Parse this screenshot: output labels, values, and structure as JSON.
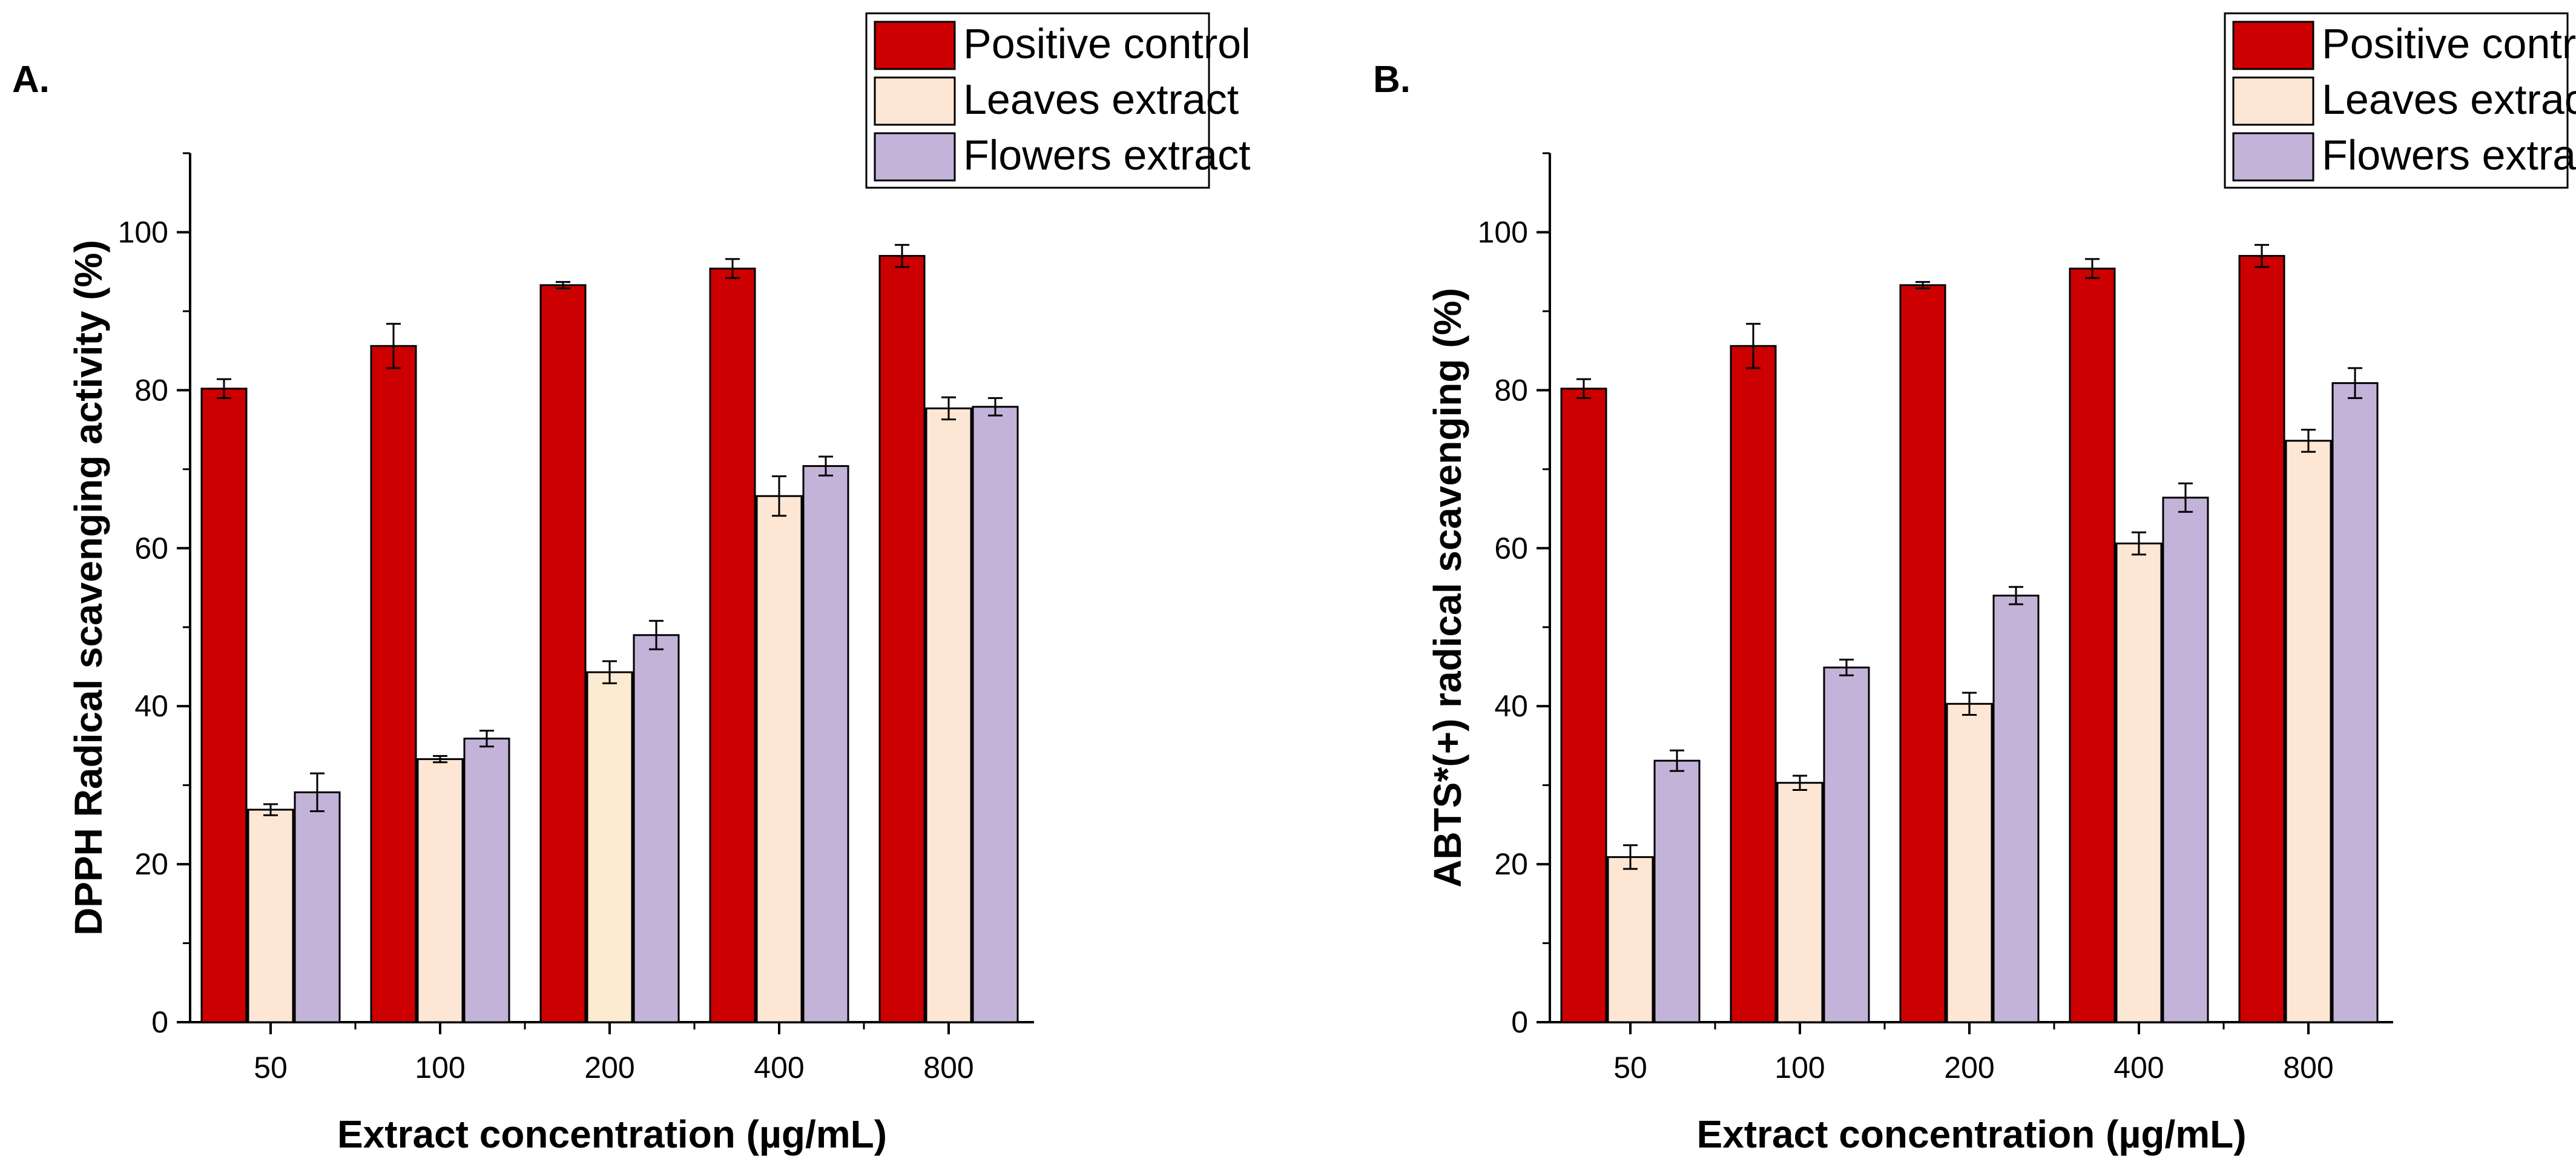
{
  "colors": {
    "positive_control": "#cc0000",
    "leaves_extract": "#fde6d4",
    "leaves_extract_alt": "#fcebd0",
    "flowers_extract": "#c3b3d9",
    "axis": "#000000"
  },
  "chart_data": [
    {
      "panel": "A.",
      "type": "bar",
      "title": "",
      "xlabel": "Extract concentration (µg/mL)",
      "ylabel": "DPPH Radical scavenging activity (%)",
      "ylim": [
        0,
        110
      ],
      "yticks": [
        0,
        20,
        40,
        60,
        80,
        100
      ],
      "categories": [
        "50",
        "100",
        "200",
        "400",
        "800"
      ],
      "legend": {
        "placement": "top-right",
        "entries": [
          "Positive control",
          "Leaves extract",
          "Flowers extract"
        ]
      },
      "series": [
        {
          "name": "Positive control",
          "color_key": "positive_control",
          "values": [
            80.2,
            85.6,
            93.3,
            95.4,
            97.0
          ],
          "errors": [
            1.2,
            2.8,
            0.4,
            1.2,
            1.4
          ]
        },
        {
          "name": "Leaves extract",
          "color_key": "leaves_extract",
          "values": [
            26.9,
            33.3,
            44.3,
            66.6,
            77.7
          ],
          "errors": [
            0.7,
            0.4,
            1.4,
            2.5,
            1.4
          ]
        },
        {
          "name": "Flowers extract",
          "color_key": "flowers_extract",
          "values": [
            29.1,
            35.9,
            49.0,
            70.4,
            77.9
          ],
          "errors": [
            2.4,
            1.0,
            1.8,
            1.2,
            1.1
          ]
        }
      ]
    },
    {
      "panel": "B.",
      "type": "bar",
      "title": "",
      "xlabel": "Extract concentration (µg/mL)",
      "ylabel": "ABTS*(+) radical scavenging (%)",
      "ylim": [
        0,
        110
      ],
      "yticks": [
        0,
        20,
        40,
        60,
        80,
        100
      ],
      "categories": [
        "50",
        "100",
        "200",
        "400",
        "800"
      ],
      "legend": {
        "placement": "top-right",
        "entries": [
          "Positive control",
          "Leaves extract",
          "Flowers extract"
        ]
      },
      "series": [
        {
          "name": "Positive control",
          "color_key": "positive_control",
          "values": [
            80.2,
            85.6,
            93.3,
            95.4,
            97.0
          ],
          "errors": [
            1.2,
            2.8,
            0.4,
            1.2,
            1.4
          ]
        },
        {
          "name": "Leaves extract",
          "color_key": "leaves_extract",
          "values": [
            20.9,
            30.3,
            40.3,
            60.6,
            73.6
          ],
          "errors": [
            1.5,
            0.9,
            1.4,
            1.4,
            1.4
          ]
        },
        {
          "name": "Flowers extract",
          "color_key": "flowers_extract",
          "values": [
            33.1,
            44.9,
            54.0,
            66.4,
            80.9
          ],
          "errors": [
            1.3,
            1.0,
            1.1,
            1.8,
            1.9
          ]
        }
      ]
    }
  ]
}
